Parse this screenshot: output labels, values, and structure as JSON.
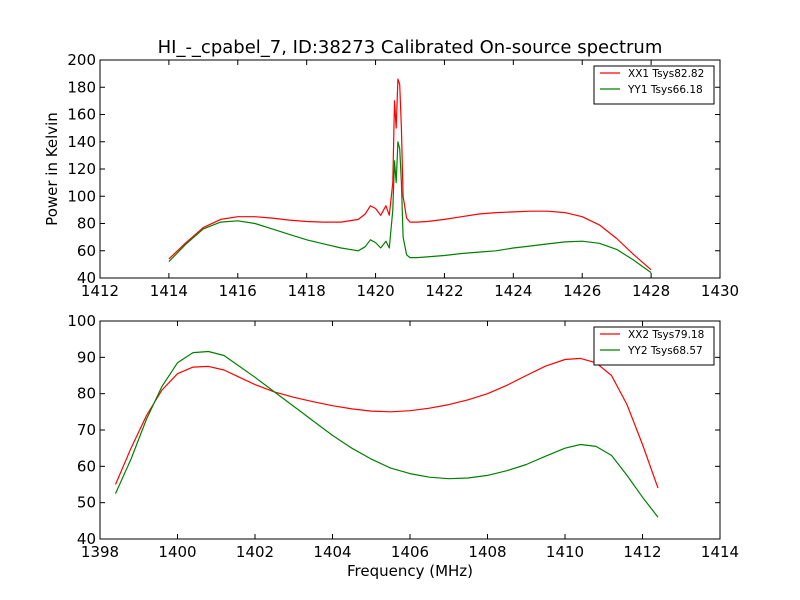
{
  "figure": {
    "title": "HI_-_cpabel_7, ID:38273 Calibrated On-source spectrum"
  },
  "chart_data": [
    {
      "type": "line",
      "title": "HI_-_cpabel_7, ID:38273 Calibrated On-source spectrum",
      "xlabel": "",
      "ylabel": "Power in Kelvin",
      "xlim": [
        1412,
        1430
      ],
      "ylim": [
        40,
        200
      ],
      "xticks": [
        1412,
        1414,
        1416,
        1418,
        1420,
        1422,
        1424,
        1426,
        1428,
        1430
      ],
      "yticks": [
        40,
        60,
        80,
        100,
        120,
        140,
        160,
        180,
        200
      ],
      "grid": false,
      "legend_position": "top-right",
      "series": [
        {
          "name": "XX1 Tsys82.82",
          "color": "#ff0000",
          "x": [
            1414,
            1414.5,
            1415,
            1415.5,
            1416,
            1416.5,
            1417,
            1417.5,
            1418,
            1418.5,
            1419,
            1419.5,
            1419.7,
            1419.85,
            1420.0,
            1420.15,
            1420.3,
            1420.4,
            1420.5,
            1420.55,
            1420.6,
            1420.65,
            1420.7,
            1420.75,
            1420.8,
            1420.9,
            1421.0,
            1421.2,
            1421.5,
            1422,
            1422.5,
            1423,
            1423.5,
            1424,
            1424.5,
            1425,
            1425.5,
            1426,
            1426.5,
            1427,
            1427.5,
            1428
          ],
          "y": [
            54,
            66,
            77,
            83,
            85,
            85,
            84,
            82.5,
            81.5,
            81,
            81,
            83,
            87,
            93,
            91,
            86,
            93,
            86,
            110,
            170,
            150,
            186,
            182,
            150,
            100,
            84,
            81,
            81,
            81.5,
            83,
            85,
            87,
            88,
            88.5,
            89,
            89,
            88,
            85,
            79,
            69,
            57,
            46
          ]
        },
        {
          "name": "YY1 Tsys66.18",
          "color": "#008000",
          "x": [
            1414,
            1414.5,
            1415,
            1415.5,
            1416,
            1416.5,
            1417,
            1417.5,
            1418,
            1418.5,
            1419,
            1419.5,
            1419.7,
            1419.85,
            1420.0,
            1420.15,
            1420.3,
            1420.4,
            1420.5,
            1420.55,
            1420.6,
            1420.65,
            1420.7,
            1420.75,
            1420.8,
            1420.9,
            1421.0,
            1421.2,
            1421.5,
            1422,
            1422.5,
            1423,
            1423.5,
            1424,
            1424.5,
            1425,
            1425.5,
            1426,
            1426.5,
            1427,
            1427.5,
            1428
          ],
          "y": [
            52,
            65,
            76,
            81,
            82,
            80,
            76,
            72,
            68,
            65,
            62,
            60,
            63,
            68,
            66,
            62,
            67,
            62,
            90,
            126,
            110,
            140,
            135,
            110,
            70,
            57,
            55,
            55,
            55.5,
            56.5,
            58,
            59,
            60,
            62,
            63.5,
            65,
            66.5,
            67,
            65.5,
            61,
            53,
            44
          ]
        }
      ]
    },
    {
      "type": "line",
      "title": "",
      "xlabel": "Frequency (MHz)",
      "ylabel": "",
      "xlim": [
        1398,
        1414
      ],
      "ylim": [
        40,
        100
      ],
      "xticks": [
        1398,
        1400,
        1402,
        1404,
        1406,
        1408,
        1410,
        1412,
        1414
      ],
      "yticks": [
        40,
        50,
        60,
        70,
        80,
        90,
        100
      ],
      "grid": false,
      "legend_position": "top-right",
      "series": [
        {
          "name": "XX2 Tsys79.18",
          "color": "#ff0000",
          "x": [
            1398.4,
            1398.8,
            1399.2,
            1399.6,
            1400.0,
            1400.4,
            1400.8,
            1401.2,
            1401.6,
            1402.0,
            1402.5,
            1403.0,
            1403.5,
            1404.0,
            1404.5,
            1405.0,
            1405.5,
            1406.0,
            1406.5,
            1407.0,
            1407.5,
            1408.0,
            1408.5,
            1409.0,
            1409.5,
            1410.0,
            1410.4,
            1410.8,
            1411.2,
            1411.6,
            1412.0,
            1412.4
          ],
          "y": [
            55,
            65,
            74,
            81,
            85.5,
            87.3,
            87.5,
            86.5,
            84.5,
            82.5,
            80.5,
            79,
            77.8,
            76.7,
            75.8,
            75.2,
            75,
            75.3,
            76,
            77,
            78.3,
            80,
            82.3,
            85,
            87.6,
            89.4,
            89.7,
            88.5,
            85,
            77,
            66,
            54
          ]
        },
        {
          "name": "YY2 Tsys68.57",
          "color": "#008000",
          "x": [
            1398.4,
            1398.8,
            1399.2,
            1399.6,
            1400.0,
            1400.4,
            1400.8,
            1401.2,
            1401.6,
            1402.0,
            1402.5,
            1403.0,
            1403.5,
            1404.0,
            1404.5,
            1405.0,
            1405.5,
            1406.0,
            1406.5,
            1407.0,
            1407.5,
            1408.0,
            1408.5,
            1409.0,
            1409.5,
            1410.0,
            1410.4,
            1410.8,
            1411.2,
            1411.6,
            1412.0,
            1412.4
          ],
          "y": [
            52.5,
            62,
            73,
            82,
            88.5,
            91.3,
            91.6,
            90.5,
            87.5,
            84.5,
            80.5,
            76.5,
            72.5,
            68.5,
            65,
            62,
            59.5,
            58,
            57,
            56.6,
            56.8,
            57.5,
            58.8,
            60.5,
            62.8,
            65,
            66,
            65.5,
            63,
            57.5,
            51.5,
            46
          ]
        }
      ]
    }
  ]
}
